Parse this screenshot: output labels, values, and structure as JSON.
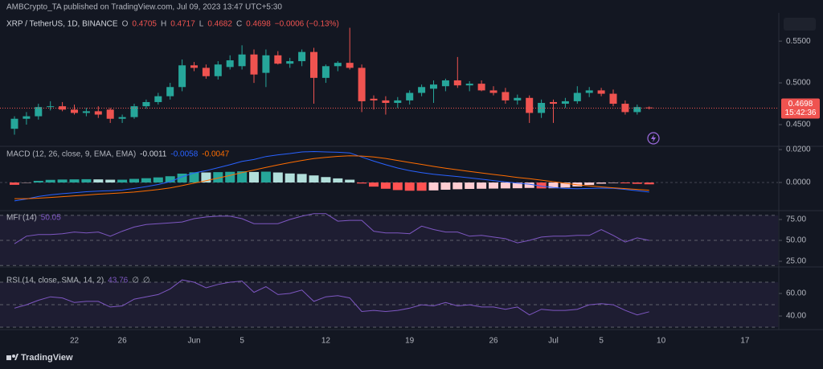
{
  "header": "AMBCrypto_TA published on TradingView.com, Jul 09, 2023 13:47 UTC+5:30",
  "footer": "TradingView",
  "chart_data": [
    {
      "type": "candlestick",
      "title": "XRP / TetherUS, 1D, BINANCE",
      "legend_labels": [
        "O",
        "H",
        "L",
        "C"
      ],
      "change": "−0.0006 (−0.13%)",
      "countdown": "15:42:36",
      "categories": [
        null,
        null,
        null,
        null,
        null,
        "22",
        null,
        null,
        null,
        "26",
        null,
        null,
        null,
        null,
        null,
        "Jun",
        null,
        null,
        null,
        "5",
        null,
        null,
        null,
        null,
        null,
        null,
        "12",
        null,
        null,
        null,
        null,
        null,
        null,
        "19",
        null,
        null,
        null,
        null,
        null,
        null,
        "26",
        null,
        null,
        null,
        null,
        "Jul",
        null,
        null,
        null,
        "5",
        null,
        null,
        null,
        null,
        "10",
        null,
        null,
        null,
        null,
        null,
        null,
        "17",
        null,
        null
      ],
      "open": [
        0.445,
        0.457,
        0.46,
        0.471,
        0.472,
        0.468,
        0.464,
        0.466,
        0.468,
        0.457,
        0.459,
        0.472,
        0.477,
        0.484,
        0.495,
        0.521,
        0.518,
        0.508,
        0.519,
        0.52,
        0.534,
        0.512,
        0.533,
        0.523,
        0.526,
        0.537,
        0.506,
        0.52,
        0.524,
        0.518,
        0.481,
        0.479,
        0.476,
        0.479,
        0.488,
        0.493,
        0.496,
        0.503,
        0.497,
        0.499,
        0.491,
        0.489,
        0.479,
        0.482,
        0.464,
        0.477,
        0.475,
        0.478,
        0.488,
        0.491,
        0.487,
        0.475,
        0.465,
        0.4705,
        null,
        null,
        null,
        null,
        null,
        null,
        null,
        null,
        null,
        null
      ],
      "high": [
        0.46,
        0.465,
        0.475,
        0.478,
        0.477,
        0.474,
        0.47,
        0.472,
        0.47,
        0.462,
        0.475,
        0.48,
        0.488,
        0.5,
        0.528,
        0.525,
        0.522,
        0.526,
        0.533,
        0.545,
        0.54,
        0.54,
        0.538,
        0.53,
        0.54,
        0.542,
        0.522,
        0.526,
        0.566,
        0.522,
        0.485,
        0.484,
        0.483,
        0.491,
        0.498,
        0.503,
        0.505,
        0.531,
        0.502,
        0.503,
        0.496,
        0.494,
        0.486,
        0.485,
        0.48,
        0.48,
        0.482,
        0.496,
        0.495,
        0.494,
        0.492,
        0.479,
        0.474,
        0.4717,
        null,
        null,
        null,
        null,
        null,
        null,
        null,
        null,
        null,
        null
      ],
      "low": [
        0.438,
        0.45,
        0.456,
        0.467,
        0.466,
        0.462,
        0.46,
        0.458,
        0.452,
        0.452,
        0.457,
        0.469,
        0.474,
        0.48,
        0.49,
        0.514,
        0.505,
        0.504,
        0.516,
        0.516,
        0.5,
        0.495,
        0.522,
        0.518,
        0.52,
        0.475,
        0.5,
        0.514,
        0.516,
        0.465,
        0.468,
        0.462,
        0.47,
        0.474,
        0.484,
        0.476,
        0.49,
        0.494,
        0.49,
        0.49,
        0.485,
        0.475,
        0.474,
        0.452,
        0.458,
        0.452,
        0.47,
        0.475,
        0.483,
        0.484,
        0.472,
        0.462,
        0.462,
        0.4682,
        null,
        null,
        null,
        null,
        null,
        null,
        null,
        null,
        null,
        null
      ],
      "close": [
        0.457,
        0.46,
        0.471,
        0.472,
        0.468,
        0.464,
        0.466,
        0.462,
        0.457,
        0.459,
        0.472,
        0.477,
        0.484,
        0.495,
        0.521,
        0.518,
        0.508,
        0.522,
        0.527,
        0.534,
        0.51,
        0.533,
        0.523,
        0.526,
        0.537,
        0.506,
        0.52,
        0.524,
        0.518,
        0.478,
        0.479,
        0.476,
        0.479,
        0.488,
        0.495,
        0.498,
        0.503,
        0.497,
        0.499,
        0.491,
        0.488,
        0.479,
        0.482,
        0.464,
        0.476,
        0.475,
        0.478,
        0.488,
        0.491,
        0.487,
        0.475,
        0.465,
        0.471,
        0.4698,
        null,
        null,
        null,
        null,
        null,
        null,
        null,
        null,
        null,
        null
      ],
      "up_color": "#26a69a",
      "down_color": "#ef5350",
      "ylim": [
        0.424,
        0.58
      ],
      "yticks": [
        {
          "value": 0.45,
          "label": "0.4500"
        },
        {
          "value": 0.5,
          "label": "0.5000"
        },
        {
          "value": 0.55,
          "label": "0.5500"
        }
      ]
    },
    {
      "type": "macd",
      "title": "MACD (12, 26, close, 9, EMA, EMA)",
      "histogram": [
        -0.0014,
        -0.0002,
        0.001,
        0.0016,
        0.0018,
        0.0019,
        0.002,
        0.0019,
        0.0017,
        0.0017,
        0.0022,
        0.0026,
        0.0031,
        0.0038,
        0.0054,
        0.0062,
        0.0061,
        0.0063,
        0.0065,
        0.0068,
        0.0064,
        0.0066,
        0.0061,
        0.0055,
        0.0052,
        0.0043,
        0.0033,
        0.0025,
        0.0017,
        -0.0006,
        -0.0025,
        -0.0038,
        -0.0046,
        -0.005,
        -0.005,
        -0.0048,
        -0.0044,
        -0.0041,
        -0.0039,
        -0.0038,
        -0.0037,
        -0.0036,
        -0.0035,
        -0.0033,
        -0.0036,
        -0.0035,
        -0.0031,
        -0.0024,
        -0.0015,
        -0.0007,
        -0.0003,
        -0.0005,
        -0.0008,
        -0.0011,
        null,
        null,
        null,
        null,
        null,
        null,
        null,
        null,
        null,
        null
      ],
      "macd": [
        -0.0112,
        -0.01,
        -0.0085,
        -0.0075,
        -0.0068,
        -0.0062,
        -0.0056,
        -0.0052,
        -0.005,
        -0.0046,
        -0.0036,
        -0.0025,
        -0.0012,
        0.0005,
        0.0035,
        0.0058,
        0.0072,
        0.009,
        0.0108,
        0.0128,
        0.014,
        0.0158,
        0.0168,
        0.0176,
        0.0186,
        0.0188,
        0.0186,
        0.0184,
        0.018,
        0.0155,
        0.013,
        0.0108,
        0.0088,
        0.0072,
        0.006,
        0.005,
        0.0043,
        0.0036,
        0.0028,
        0.002,
        0.0012,
        0.0004,
        -0.0004,
        -0.001,
        -0.0022,
        -0.003,
        -0.0036,
        -0.0038,
        -0.0036,
        -0.0034,
        -0.0035,
        -0.0042,
        -0.005,
        -0.0058,
        null,
        null,
        null,
        null,
        null,
        null,
        null,
        null,
        null,
        null
      ],
      "signal": [
        -0.0098,
        -0.0098,
        -0.0095,
        -0.0091,
        -0.0086,
        -0.0081,
        -0.0076,
        -0.0071,
        -0.0067,
        -0.0063,
        -0.0058,
        -0.0051,
        -0.0043,
        -0.0033,
        -0.0019,
        -0.0004,
        0.0011,
        0.0027,
        0.0043,
        0.006,
        0.0076,
        0.0092,
        0.0107,
        0.0121,
        0.0134,
        0.0145,
        0.0153,
        0.0159,
        0.0163,
        0.0161,
        0.0155,
        0.0146,
        0.0134,
        0.0122,
        0.011,
        0.0098,
        0.0087,
        0.0077,
        0.0067,
        0.0058,
        0.0049,
        0.004,
        0.0031,
        0.0023,
        0.0014,
        0.0005,
        -0.0005,
        -0.0014,
        -0.0021,
        -0.0027,
        -0.0032,
        -0.0037,
        -0.0042,
        -0.0047,
        null,
        null,
        null,
        null,
        null,
        null,
        null,
        null,
        null,
        null
      ],
      "histogram_colors": [
        "#26a69a",
        "#b2dfdb",
        "#ff5252",
        "#ffcdd2"
      ],
      "macd_color": "#2962ff",
      "signal_color": "#ff6d00",
      "ylim": [
        -0.0171,
        0.022
      ],
      "yticks": [
        {
          "value": 0,
          "label": "0.0000"
        },
        {
          "value": 0.02,
          "label": "0.0200"
        }
      ]
    },
    {
      "type": "line",
      "title": "MFI (14)",
      "color": "#7e57c2",
      "values": [
        46,
        55,
        57,
        57,
        58,
        60,
        59,
        60,
        55,
        61,
        66,
        69,
        70,
        71,
        72,
        76,
        78,
        79,
        79,
        76,
        70,
        70,
        70,
        75,
        79,
        82,
        82,
        73,
        74,
        74,
        61,
        59,
        59,
        58,
        67,
        63,
        60,
        60,
        55,
        56,
        54,
        52,
        47,
        50,
        54,
        55,
        55,
        56,
        56,
        63,
        56,
        48,
        53,
        50.05,
        null,
        null,
        null,
        null,
        null,
        null,
        null,
        null,
        null,
        null
      ],
      "bands": [
        80,
        50,
        20
      ],
      "ylim": [
        18.3,
        85.6
      ],
      "yticks": [
        {
          "value": 25,
          "label": "25.00"
        },
        {
          "value": 50,
          "label": "50.00"
        },
        {
          "value": 75,
          "label": "75.00"
        }
      ]
    },
    {
      "type": "line",
      "title": "RSI (14, close, SMA, 14, 2)",
      "color": "#7e57c2",
      "extra_labels": [
        "∅",
        "∅"
      ],
      "values": [
        47,
        50,
        54,
        57,
        56,
        52,
        53,
        53,
        48,
        49,
        55,
        57,
        59,
        64,
        72,
        70,
        65,
        68,
        70,
        71,
        61,
        66,
        59,
        60,
        63,
        53,
        57,
        58,
        56,
        44,
        45,
        44,
        45,
        47,
        50,
        49,
        52,
        49,
        50,
        48,
        48,
        46,
        48,
        41,
        46,
        45,
        45,
        46,
        50,
        51,
        50,
        45,
        41,
        43.76,
        null,
        null,
        null,
        null,
        null,
        null,
        null,
        null,
        null,
        null
      ],
      "bands": [
        70,
        50,
        30
      ],
      "ylim": [
        27.9,
        83.6
      ],
      "yticks": [
        {
          "value": 40,
          "label": "40.00"
        },
        {
          "value": 60,
          "label": "60.00"
        }
      ]
    }
  ]
}
